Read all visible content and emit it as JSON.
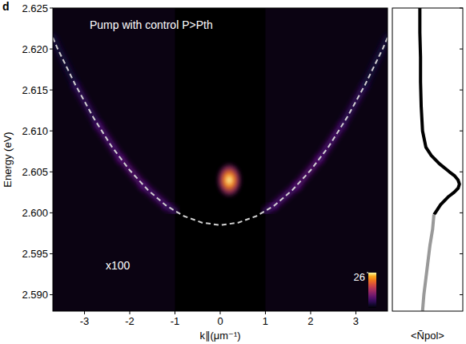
{
  "chart_data": {
    "type": "heatmap",
    "panel_label": "d",
    "annotation": "Pump with control P>Pth",
    "scale_note": "x100",
    "x_label": "k∥(μm⁻¹)",
    "y_label": "Energy (eV)",
    "xlim": [
      -3.7,
      3.7
    ],
    "xticks": [
      -3,
      -2,
      -1,
      0,
      1,
      2,
      3
    ],
    "ylim": [
      2.588,
      2.625
    ],
    "yticks": [
      {
        "value": 2.59,
        "label": "2.590"
      },
      2.595,
      {
        "value": 2.6,
        "label": "2.600"
      },
      2.605,
      {
        "value": 2.61,
        "label": "2.610"
      },
      2.615,
      {
        "value": 2.62,
        "label": "2.620"
      },
      2.625
    ],
    "inner_region": [
      -1,
      1
    ],
    "colorbar": {
      "range": [
        0,
        26
      ],
      "ticks": [
        26
      ]
    },
    "series": [
      {
        "type": "line",
        "line_style": "dashed",
        "color": "#d0d0d0",
        "x": [
          -3.7,
          -3.6,
          -3.2,
          -2.8,
          -2.4,
          -2.0,
          -1.6,
          -1.2,
          -0.8,
          -0.4,
          0,
          0.4,
          0.8,
          1.2,
          1.6,
          2.0,
          2.4,
          2.8,
          3.2,
          3.6,
          3.7
        ],
        "values": [
          2.6214,
          2.6201,
          2.6156,
          2.6116,
          2.6081,
          2.6052,
          2.6028,
          2.6009,
          2.5996,
          2.5988,
          2.5985,
          2.5988,
          2.5996,
          2.6009,
          2.6028,
          2.6052,
          2.6081,
          2.6116,
          2.6156,
          2.6201,
          2.6214
        ]
      }
    ],
    "branches": [
      {
        "k": [
          -3.7,
          -3.2,
          -2.7,
          -2.2,
          -1.7,
          -1.2,
          -1.0
        ],
        "E": [
          2.6214,
          2.6156,
          2.6107,
          2.6066,
          2.6033,
          2.6009,
          2.6002
        ],
        "intensity": [
          2,
          4,
          6,
          7,
          7,
          6,
          5
        ]
      },
      {
        "k": [
          1.0,
          1.2,
          1.7,
          2.2,
          2.7,
          3.2,
          3.7
        ],
        "E": [
          2.6002,
          2.6009,
          2.6033,
          2.6066,
          2.6107,
          2.6156,
          2.6214
        ],
        "intensity": [
          5,
          6,
          7,
          7,
          6,
          4,
          2
        ]
      }
    ],
    "condensate": {
      "k": 0.2,
      "E": 2.604,
      "intensity": 26,
      "k_width": 0.6,
      "E_width": 0.0045
    },
    "profile": {
      "title": "<Ñpol>",
      "xlim": [
        0,
        1.05
      ],
      "series": [
        {
          "color": "#000000",
          "energy": [
            2.625,
            2.622,
            2.619,
            2.616,
            2.613,
            2.61,
            2.608,
            2.607,
            2.606,
            2.605,
            2.6045,
            2.604,
            2.6035,
            2.603,
            2.6025,
            2.602,
            2.601,
            2.6,
            2.5998
          ],
          "values": [
            0.41,
            0.41,
            0.42,
            0.42,
            0.43,
            0.45,
            0.5,
            0.58,
            0.7,
            0.85,
            0.93,
            0.98,
            1.0,
            0.98,
            0.92,
            0.84,
            0.72,
            0.64,
            0.62
          ]
        },
        {
          "color": "#999999",
          "energy": [
            2.5998,
            2.598,
            2.596,
            2.594,
            2.592,
            2.59,
            2.588
          ],
          "values": [
            0.62,
            0.6,
            0.56,
            0.53,
            0.5,
            0.47,
            0.45
          ]
        }
      ]
    }
  }
}
